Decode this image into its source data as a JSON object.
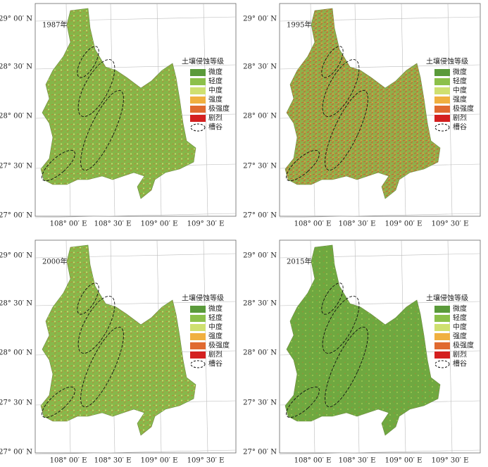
{
  "legend": {
    "title": "土壤侵蚀等级",
    "items": [
      {
        "label": "微度",
        "color": "#5a9a3a"
      },
      {
        "label": "轻度",
        "color": "#8cc04a"
      },
      {
        "label": "中度",
        "color": "#cfe070"
      },
      {
        "label": "强度",
        "color": "#f0b040"
      },
      {
        "label": "极强度",
        "color": "#e06a30"
      },
      {
        "label": "剧烈",
        "color": "#d42020"
      }
    ],
    "trough": "槽谷"
  },
  "lat_labels": [
    "29° 00′ N",
    "28° 30′ N",
    "28° 00′ N",
    "27° 30′ N",
    "27° 00′ N"
  ],
  "lon_labels": [
    "108° 00′ E",
    "108° 30′ E",
    "109° 00′ E",
    "109° 30′ E"
  ],
  "panels": [
    {
      "year": "1987年"
    },
    {
      "year": "1995年"
    },
    {
      "year": "2000年"
    },
    {
      "year": "2015年"
    }
  ]
}
